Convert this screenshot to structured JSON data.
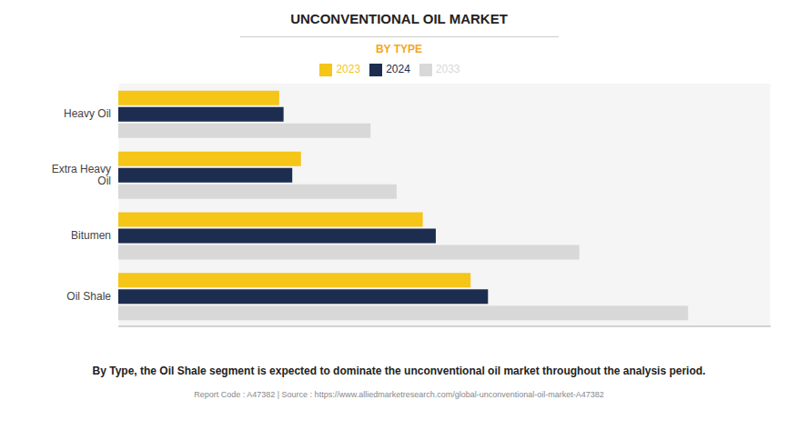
{
  "chart_data": {
    "type": "bar",
    "orientation": "horizontal",
    "title": "UNCONVENTIONAL OIL MARKET",
    "subtitle": "BY TYPE",
    "annotations": [
      "By Type, the Oil Shale segment is expected to dominate the unconventional oil market throughout the analysis period.",
      "Report Code : A47382  |  Source : https://www.alliedmarketresearch.com/global-unconventional-oil-market-A47382"
    ],
    "categories": [
      "Oil Shale",
      "Bitumen",
      "Extra Heavy\nOil",
      "Heavy Oil"
    ],
    "series": [
      {
        "name": "2023",
        "color": "#F5C518",
        "values": [
          4.05,
          3.5,
          2.1,
          1.85
        ]
      },
      {
        "name": "2024",
        "color": "#1C2D4F",
        "values": [
          4.25,
          3.65,
          2.0,
          1.9
        ]
      },
      {
        "name": "2033",
        "color": "#D8D8D8",
        "values": [
          6.55,
          5.3,
          3.2,
          2.9
        ]
      }
    ],
    "xlim": [
      0,
      7.5
    ],
    "xticks": [
      0,
      1.0714285714285714,
      2.142857142857143,
      3.2142857142857144,
      4.285714285714286,
      5.357142857142857,
      6.428571428571429,
      7.5
    ],
    "grid": true,
    "legend": "top",
    "tick_labels": "y"
  }
}
